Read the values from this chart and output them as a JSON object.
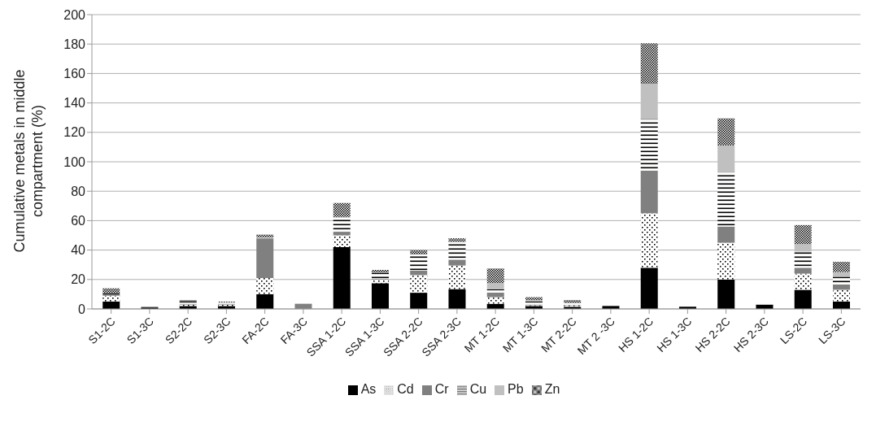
{
  "chart_data": {
    "type": "bar",
    "stacked": true,
    "ylabel": "Cumulative metals in middle compartment (%)",
    "categories": [
      "S1-2C",
      "S1-3C",
      "S2-2C",
      "S2-3C",
      "FA-2C",
      "FA-3C",
      "SSA 1-2C",
      "SSA 1-3C",
      "SSA 2-2C",
      "SSA 2-3C",
      "MT 1-2C",
      "MT 1-3C",
      "MT 2-2C",
      "MT 2 -3C",
      "HS 1-2C",
      "HS 1-3C",
      "HS 2-2C",
      "HS 2-3C",
      "LS-2C",
      "LS-3C"
    ],
    "series": [
      {
        "name": "As",
        "color": "#000000",
        "values": [
          5,
          1,
          2,
          2,
          10,
          0,
          42,
          17.5,
          11,
          13.5,
          3.5,
          2,
          1.5,
          2,
          28,
          1.5,
          20,
          3,
          13,
          5
        ]
      },
      {
        "name": "Cd",
        "color": "#ffffff",
        "values": [
          4,
          0,
          1,
          1,
          11,
          0,
          8,
          2.5,
          12,
          16,
          4.5,
          0.5,
          1,
          0,
          37,
          0,
          25,
          0,
          11,
          8
        ]
      },
      {
        "name": "Cr",
        "color": "#808080",
        "values": [
          1,
          0.5,
          0.5,
          0.5,
          27,
          3.5,
          2,
          0.5,
          3,
          4,
          2.5,
          0.5,
          null,
          0,
          29,
          0,
          11,
          0,
          4,
          3
        ]
      },
      {
        "name": "Cu",
        "color": "#fffffe",
        "values": [
          1,
          0,
          2,
          1,
          0.5,
          0,
          10,
          4,
          11,
          12,
          3,
          2,
          1.5,
          0,
          35,
          0,
          37,
          0.5,
          11,
          6
        ]
      },
      {
        "name": "Pb",
        "color": "#c0c0c0",
        "values": [
          0,
          0,
          0,
          0,
          0,
          0,
          0.5,
          0,
          0,
          0,
          4,
          1,
          0,
          0,
          24,
          0,
          18,
          0,
          5,
          3
        ]
      },
      {
        "name": "Zn",
        "color": "#a0a0a0",
        "values": [
          3,
          0,
          0.5,
          0.5,
          2,
          0,
          9.5,
          2,
          3,
          2.5,
          10,
          2,
          2,
          0,
          27.5,
          0,
          18.5,
          0,
          13,
          7
        ]
      }
    ],
    "ylim": [
      0,
      200
    ],
    "yticks": [
      0,
      20,
      40,
      60,
      80,
      100,
      120,
      140,
      160,
      180,
      200
    ],
    "grid": "y",
    "legend": "bottom"
  }
}
